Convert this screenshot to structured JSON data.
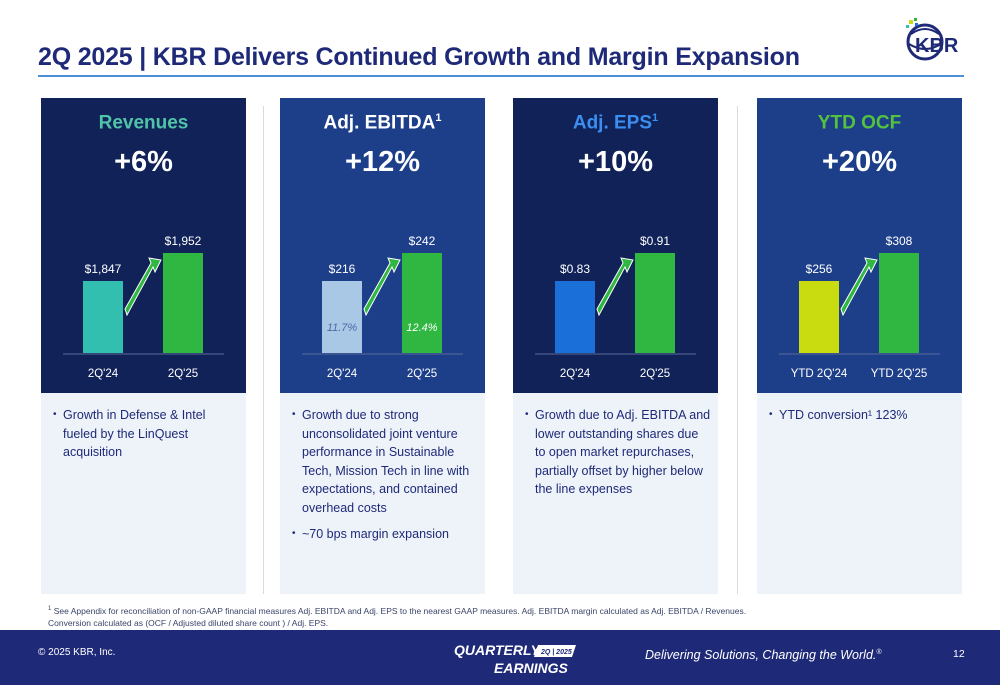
{
  "slide": {
    "title": "2Q 2025 | KBR Delivers Continued Growth and Margin Expansion",
    "logo_text": "KBR"
  },
  "cards": [
    {
      "heading": "Revenues",
      "heading_sup": "",
      "heading_color": "#4fc4a8",
      "bg": "#102258",
      "pct": "+6%",
      "bars": [
        {
          "label": "2Q'24",
          "value_label": "$1,847",
          "value": 1847,
          "color": "#33bfb0",
          "inner": ""
        },
        {
          "label": "2Q'25",
          "value_label": "$1,952",
          "value": 1952,
          "color": "#2fb741",
          "inner": ""
        }
      ],
      "bullets": [
        "Growth in Defense & Intel fueled by the LinQuest acquisition"
      ]
    },
    {
      "heading": "Adj. EBITDA",
      "heading_sup": "1",
      "heading_color": "#ffffff",
      "bg": "#1d3f8a",
      "pct": "+12%",
      "bars": [
        {
          "label": "2Q'24",
          "value_label": "$216",
          "value": 216,
          "color": "#a9c8e6",
          "inner": "11.7%"
        },
        {
          "label": "2Q'25",
          "value_label": "$242",
          "value": 242,
          "color": "#2fb741",
          "inner": "12.4%"
        }
      ],
      "bullets": [
        "Growth due to strong unconsolidated joint venture performance in Sustainable Tech, Mission Tech in line with expectations, and contained overhead costs",
        "~70 bps margin expansion"
      ]
    },
    {
      "heading": "Adj. EPS",
      "heading_sup": "1",
      "heading_color": "#3b8ff0",
      "bg": "#102258",
      "pct": "+10%",
      "bars": [
        {
          "label": "2Q'24",
          "value_label": "$0.83",
          "value": 0.83,
          "color": "#1a6fd8",
          "inner": ""
        },
        {
          "label": "2Q'25",
          "value_label": "$0.91",
          "value": 0.91,
          "color": "#2fb741",
          "inner": ""
        }
      ],
      "bullets": [
        "Growth due to Adj. EBITDA and lower outstanding shares due to open market repurchases, partially offset by higher below the line expenses"
      ]
    },
    {
      "heading": "YTD OCF",
      "heading_sup": "",
      "heading_color": "#55c23f",
      "bg": "#1d3f8a",
      "pct": "+20%",
      "bars": [
        {
          "label": "YTD 2Q'24",
          "value_label": "$256",
          "value": 256,
          "color": "#c8dc10",
          "inner": ""
        },
        {
          "label": "YTD 2Q'25",
          "value_label": "$308",
          "value": 308,
          "color": "#2fb741",
          "inner": ""
        }
      ],
      "bullets": [
        "YTD conversion¹ 123%"
      ]
    }
  ],
  "footnote": {
    "sup": "1",
    "line1": "See Appendix for reconciliation of non-GAAP financial measures Adj. EBITDA and Adj. EPS to the nearest GAAP measures. Adj. EBITDA margin calculated as Adj. EBITDA / Revenues.",
    "line2": "Conversion calculated as (OCF / Adjusted diluted share count ) / Adj. EPS."
  },
  "footer": {
    "copyright": "© 2025 KBR, Inc.",
    "badge_top": "QUARTERLY",
    "badge_tag": "2Q | 2025",
    "badge_bottom": "EARNINGS",
    "tagline": "Delivering Solutions, Changing the World.",
    "tagline_mark": "®",
    "page_number": "12"
  }
}
